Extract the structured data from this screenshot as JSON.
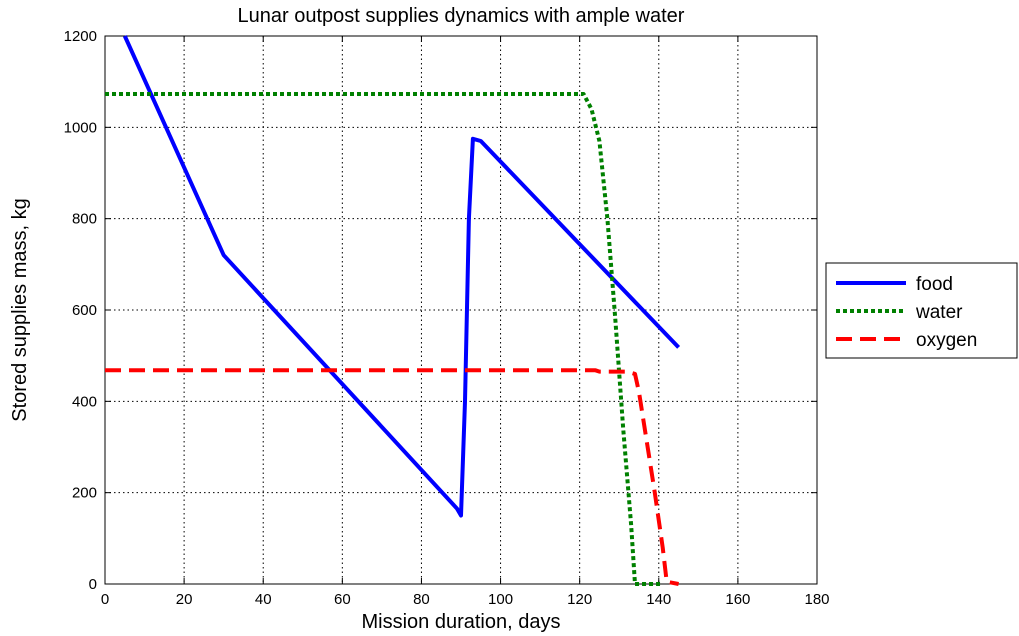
{
  "chart_data": {
    "type": "line",
    "title": "Lunar outpost supplies dynamics with ample water",
    "xlabel": "Mission duration, days",
    "ylabel": "Stored supplies mass, kg",
    "xlim": [
      0,
      180
    ],
    "ylim": [
      0,
      1200
    ],
    "xticks": [
      0,
      20,
      40,
      60,
      80,
      100,
      120,
      140,
      160,
      180
    ],
    "yticks": [
      0,
      200,
      400,
      600,
      800,
      1000,
      1200
    ],
    "xtick_labels": [
      "0",
      "20",
      "40",
      "60",
      "80",
      "100",
      "120",
      "140",
      "160",
      "180"
    ],
    "ytick_labels": [
      "0",
      "200",
      "400",
      "600",
      "800",
      "1000",
      "1200"
    ],
    "grid": true,
    "legend_position": "outside-right",
    "series": [
      {
        "name": "food",
        "color": "#0000ff",
        "style": "solid",
        "points": [
          [
            5,
            1200
          ],
          [
            30,
            720
          ],
          [
            89,
            165
          ],
          [
            90,
            150
          ],
          [
            91,
            400
          ],
          [
            92,
            800
          ],
          [
            93,
            975
          ],
          [
            95,
            970
          ],
          [
            145,
            518
          ]
        ]
      },
      {
        "name": "water",
        "color": "#008000",
        "style": "dotted",
        "points": [
          [
            0,
            1073
          ],
          [
            121,
            1073
          ],
          [
            123,
            1040
          ],
          [
            125,
            970
          ],
          [
            127,
            800
          ],
          [
            129,
            580
          ],
          [
            131,
            340
          ],
          [
            133,
            130
          ],
          [
            134,
            0
          ],
          [
            141,
            0
          ]
        ]
      },
      {
        "name": "oxygen",
        "color": "#ff0000",
        "style": "dashed",
        "points": [
          [
            0,
            468
          ],
          [
            124,
            468
          ],
          [
            125,
            465
          ],
          [
            132,
            465
          ],
          [
            134,
            460
          ],
          [
            135,
            420
          ],
          [
            137,
            310
          ],
          [
            139,
            200
          ],
          [
            141,
            80
          ],
          [
            142,
            5
          ],
          [
            145,
            0
          ]
        ]
      }
    ]
  }
}
